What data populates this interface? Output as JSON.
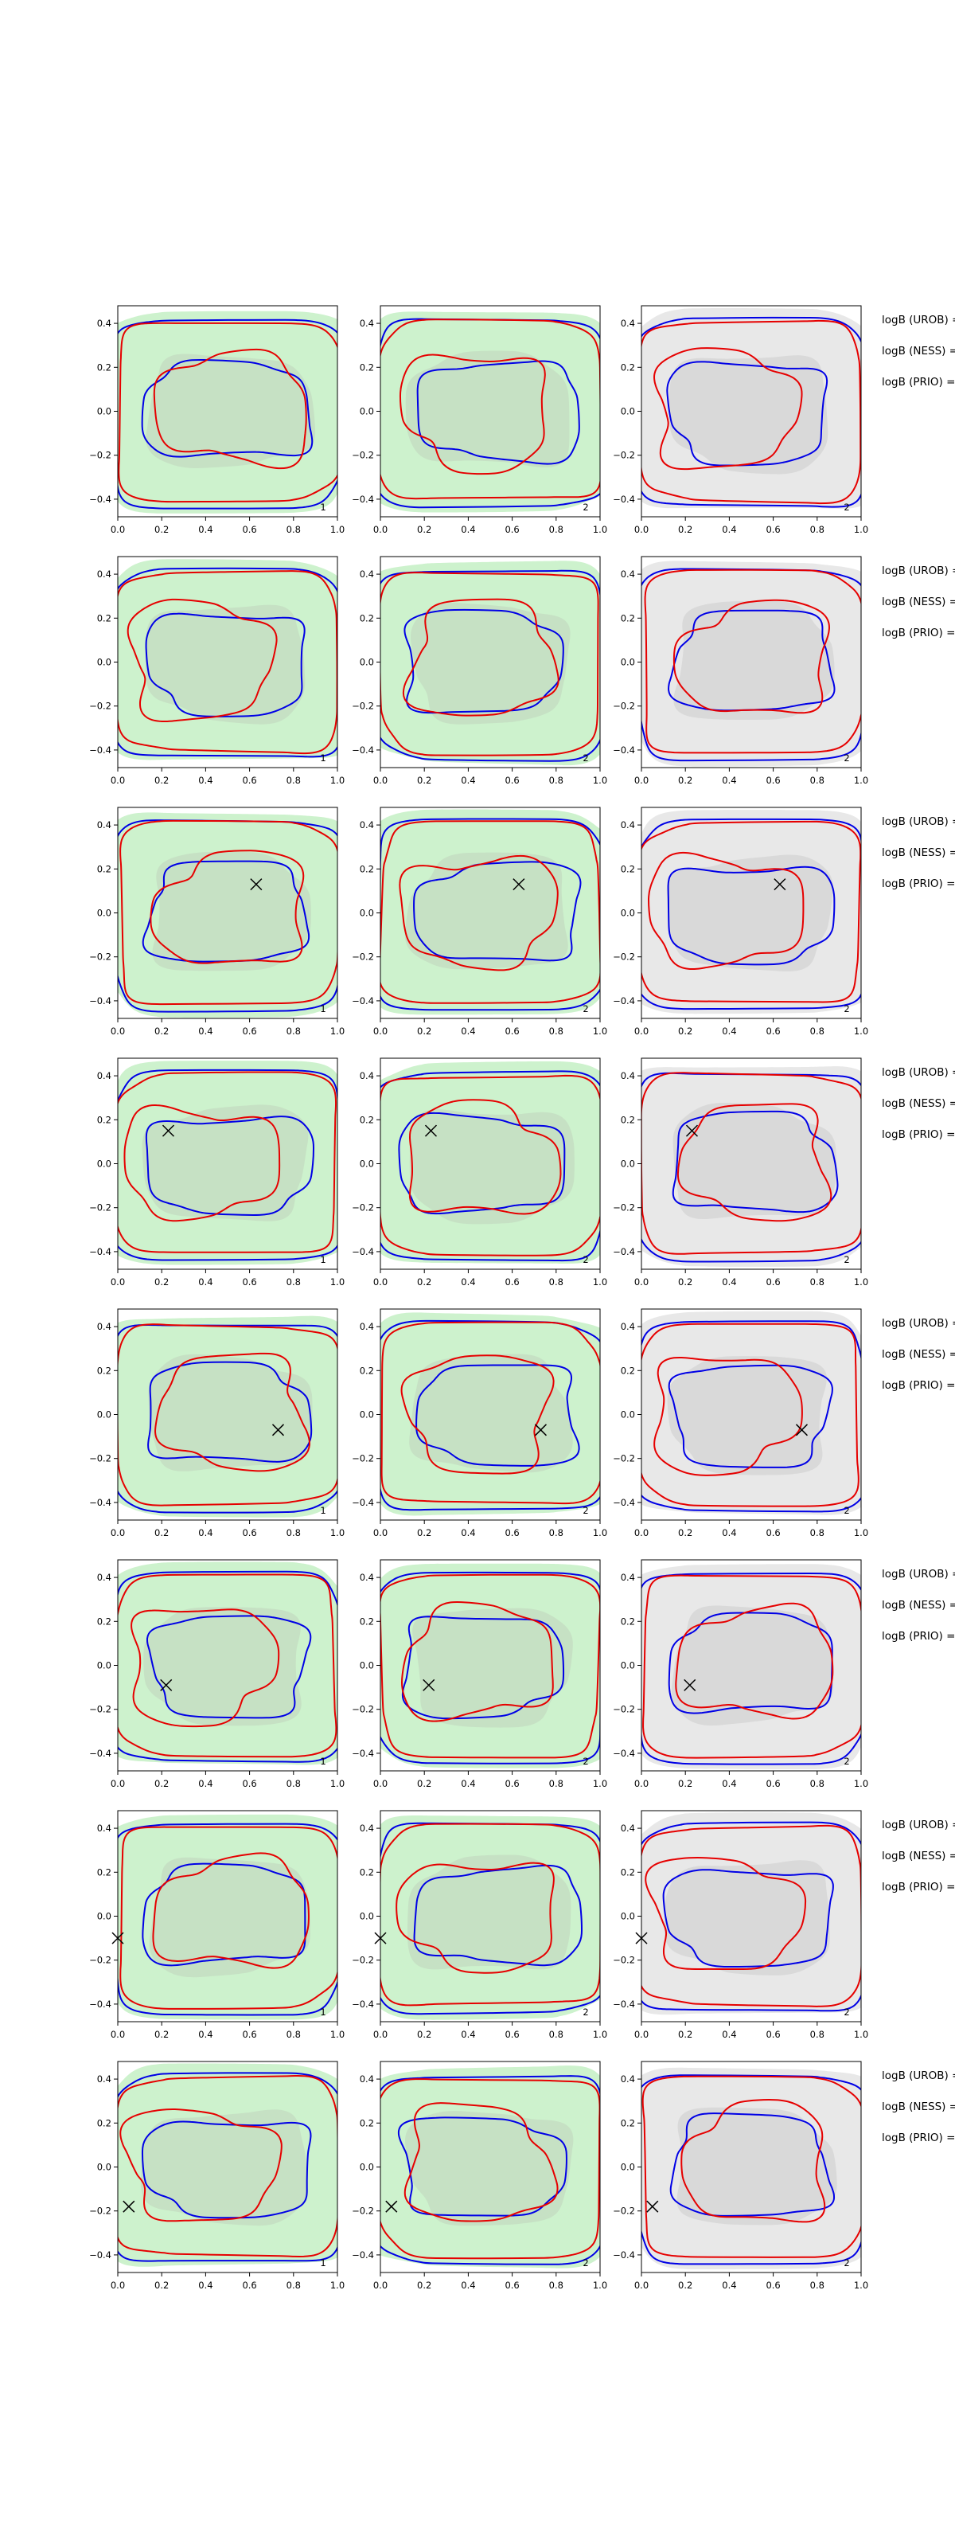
{
  "colors": {
    "region_green": "#cdf2cd",
    "region_green_inner": "#c4dcc2",
    "region_light_grey": "#e8e8e8",
    "region_dark_grey": "#d4d4d4",
    "contour_blue": "#0000e6",
    "contour_red": "#e60000",
    "axes": "#000000"
  },
  "row_labels": [
    "logB (UROB) =",
    "logB (NESS) =",
    "logB (PRIO) ="
  ],
  "chart_data": {
    "type": "contour",
    "layout": {
      "rows": 8,
      "cols": 3
    },
    "xlim": [
      0.0,
      1.0
    ],
    "ylim": [
      -0.48,
      0.48
    ],
    "xticks": [
      0.0,
      0.2,
      0.4,
      0.6,
      0.8,
      1.0
    ],
    "xtick_labels": [
      "0.0",
      "0.2",
      "0.4",
      "0.6",
      "0.8",
      "1.0"
    ],
    "yticks": [
      0.4,
      0.2,
      0.0,
      -0.2,
      -0.4
    ],
    "ytick_labels": [
      "0.4",
      "0.2",
      "0.0",
      "−0.2",
      "−0.4"
    ],
    "panel_corner_labels": [
      "1",
      "2",
      "2"
    ],
    "panel_backgrounds": [
      "green",
      "green",
      "grey"
    ],
    "grid": false,
    "series": [
      "blue contour (outer and inner)",
      "red contour (outer and inner)",
      "shaded density regions"
    ],
    "markers": [
      null,
      null,
      {
        "symbol": "x",
        "x": 0.63,
        "y": 0.13
      },
      {
        "symbol": "x",
        "x": 0.23,
        "y": 0.15
      },
      {
        "symbol": "x",
        "x": 0.73,
        "y": -0.07
      },
      {
        "symbol": "x",
        "x": 0.22,
        "y": -0.09
      },
      {
        "symbol": "x",
        "x": 0.0,
        "y": -0.1
      },
      {
        "symbol": "x",
        "x": 0.05,
        "y": -0.18
      }
    ]
  }
}
